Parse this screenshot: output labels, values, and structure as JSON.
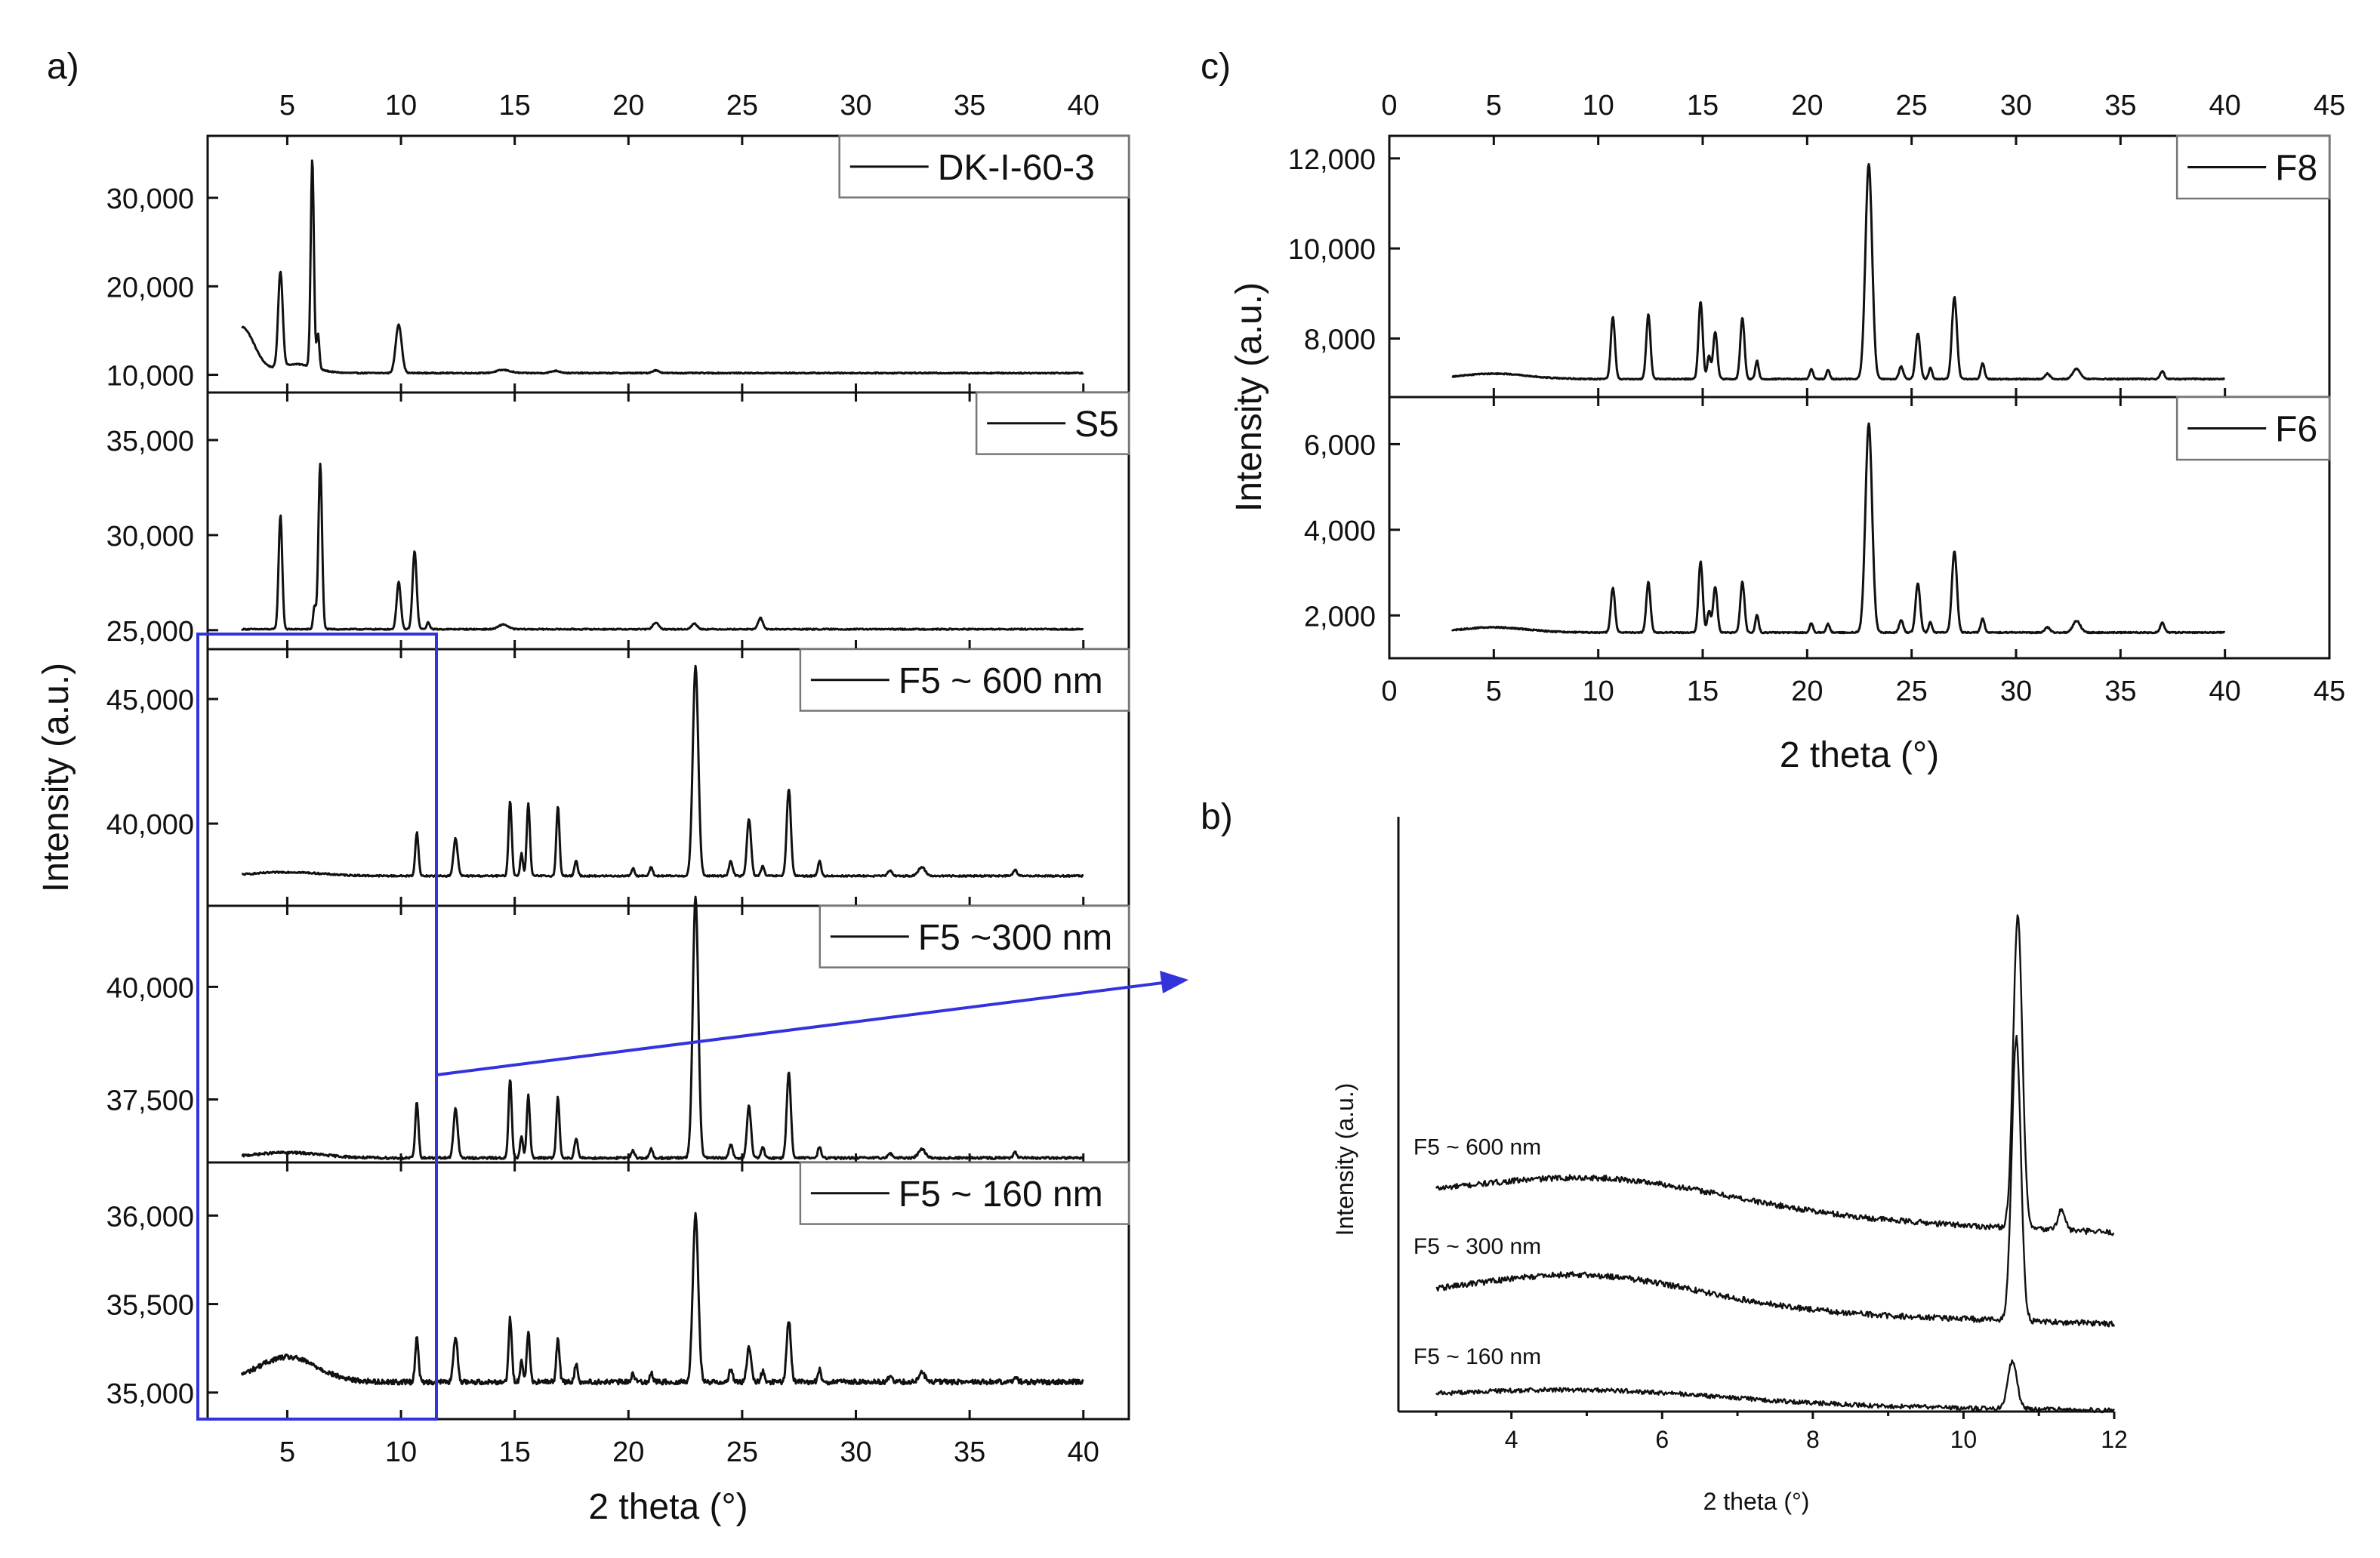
{
  "panels": {
    "a": "a)",
    "b": "b)",
    "c": "c)"
  },
  "chart_data": [
    {
      "id": "a",
      "type": "line",
      "xlabel": "2 theta (°)",
      "ylabel": "Intensity (a.u.)",
      "xlim": [
        1.5,
        42
      ],
      "xticks": [
        5,
        10,
        15,
        20,
        25,
        30,
        35,
        40
      ],
      "baseline_note": "Stacked X-ray powder diffraction patterns",
      "series": [
        {
          "name": "DK-I-60-3",
          "ylim": [
            8000,
            37000
          ],
          "yticks": [
            10000,
            20000,
            30000
          ],
          "ytick_labels": [
            "10,000",
            "20,000",
            "30,000"
          ],
          "start": 3,
          "end": 40,
          "base": 10200,
          "noise": 60,
          "peaks": [
            [
              4.7,
              10800,
              0.1
            ],
            [
              6.1,
              23500,
              0.07
            ],
            [
              6.35,
              4000,
              0.06
            ],
            [
              9.9,
              5500,
              0.13
            ],
            [
              14.5,
              350,
              0.3
            ],
            [
              16.8,
              250,
              0.2
            ],
            [
              21.2,
              300,
              0.15
            ]
          ],
          "humps": [
            [
              3,
              5200,
              0.55
            ],
            [
              5.4,
              1000,
              0.8
            ]
          ]
        },
        {
          "name": "S5",
          "ylim": [
            24000,
            37500
          ],
          "yticks": [
            25000,
            30000,
            35000
          ],
          "ytick_labels": [
            "25,000",
            "30,000",
            "35,000"
          ],
          "start": 3,
          "end": 40,
          "base": 25050,
          "noise": 30,
          "peaks": [
            [
              4.7,
              6000,
              0.08
            ],
            [
              6.2,
              1200,
              0.06
            ],
            [
              6.45,
              8700,
              0.08
            ],
            [
              9.9,
              2500,
              0.09
            ],
            [
              10.6,
              4100,
              0.09
            ],
            [
              11.2,
              350,
              0.07
            ],
            [
              14.5,
              250,
              0.2
            ],
            [
              21.2,
              350,
              0.12
            ],
            [
              22.9,
              300,
              0.12
            ],
            [
              25.8,
              600,
              0.1
            ]
          ],
          "humps": []
        },
        {
          "name": "F5 ~ 600 nm",
          "ylim": [
            36700,
            47000
          ],
          "yticks": [
            40000,
            45000
          ],
          "ytick_labels": [
            "40,000",
            "45,000"
          ],
          "start": 3,
          "end": 40,
          "base": 37900,
          "noise": 30,
          "peaks": [
            [
              10.7,
              1750,
              0.07
            ],
            [
              12.4,
              1500,
              0.09
            ],
            [
              14.8,
              3000,
              0.07
            ],
            [
              15.3,
              900,
              0.06
            ],
            [
              15.6,
              2900,
              0.07
            ],
            [
              16.9,
              2800,
              0.07
            ],
            [
              17.7,
              600,
              0.07
            ],
            [
              20.2,
              300,
              0.07
            ],
            [
              21.0,
              350,
              0.07
            ],
            [
              22.95,
              8400,
              0.12
            ],
            [
              24.5,
              600,
              0.08
            ],
            [
              25.3,
              2300,
              0.09
            ],
            [
              25.9,
              400,
              0.07
            ],
            [
              27.05,
              3500,
              0.09
            ],
            [
              28.4,
              600,
              0.07
            ],
            [
              31.5,
              200,
              0.1
            ],
            [
              32.9,
              350,
              0.15
            ],
            [
              37.0,
              250,
              0.08
            ]
          ],
          "humps": [
            [
              5,
              150,
              1.5
            ]
          ]
        },
        {
          "name": "F5 ~300 nm",
          "ylim": [
            36100,
            41800
          ],
          "yticks": [
            37500,
            40000
          ],
          "ytick_labels": [
            "37,500",
            "40,000"
          ],
          "start": 3,
          "end": 40,
          "base": 36200,
          "noise": 25,
          "peaks": [
            [
              10.7,
              1250,
              0.07
            ],
            [
              12.4,
              1100,
              0.09
            ],
            [
              14.8,
              1750,
              0.07
            ],
            [
              15.3,
              500,
              0.06
            ],
            [
              15.6,
              1400,
              0.07
            ],
            [
              16.9,
              1350,
              0.07
            ],
            [
              17.7,
              450,
              0.07
            ],
            [
              20.2,
              180,
              0.07
            ],
            [
              21.0,
              200,
              0.07
            ],
            [
              22.95,
              5800,
              0.12
            ],
            [
              24.5,
              300,
              0.08
            ],
            [
              25.3,
              1150,
              0.09
            ],
            [
              25.9,
              250,
              0.07
            ],
            [
              27.05,
              1900,
              0.09
            ],
            [
              28.4,
              250,
              0.07
            ],
            [
              31.5,
              100,
              0.1
            ],
            [
              32.9,
              200,
              0.15
            ],
            [
              37.0,
              120,
              0.08
            ]
          ],
          "humps": [
            [
              5,
              120,
              1.5
            ]
          ]
        },
        {
          "name": "F5 ~ 160 nm",
          "ylim": [
            34850,
            36300
          ],
          "yticks": [
            35000,
            35500,
            36000
          ],
          "ytick_labels": [
            "35,000",
            "35,500",
            "36,000"
          ],
          "start": 3,
          "end": 40,
          "base": 35060,
          "noise": 14,
          "peaks": [
            [
              10.7,
              260,
              0.07
            ],
            [
              12.4,
              250,
              0.09
            ],
            [
              14.8,
              360,
              0.07
            ],
            [
              15.3,
              130,
              0.06
            ],
            [
              15.6,
              280,
              0.07
            ],
            [
              16.9,
              250,
              0.07
            ],
            [
              17.7,
              100,
              0.07
            ],
            [
              20.2,
              50,
              0.07
            ],
            [
              21.0,
              50,
              0.07
            ],
            [
              22.95,
              940,
              0.12
            ],
            [
              24.5,
              70,
              0.08
            ],
            [
              25.3,
              200,
              0.09
            ],
            [
              25.9,
              60,
              0.07
            ],
            [
              27.05,
              350,
              0.09
            ],
            [
              28.4,
              70,
              0.07
            ],
            [
              31.5,
              30,
              0.1
            ],
            [
              32.9,
              50,
              0.15
            ],
            [
              37.0,
              30,
              0.08
            ]
          ],
          "humps": [
            [
              5,
              140,
              1.3
            ]
          ]
        }
      ]
    },
    {
      "id": "c",
      "type": "line",
      "xlabel": "2 theta (°)",
      "ylabel": "Intensity (a.u.)",
      "xlim": [
        0,
        45
      ],
      "xticks": [
        0,
        5,
        10,
        15,
        20,
        25,
        30,
        35,
        40,
        45
      ],
      "series": [
        {
          "name": "F8",
          "ylim": [
            6700,
            12500
          ],
          "yticks": [
            8000,
            10000,
            12000
          ],
          "ytick_labels": [
            "8,000",
            "10,000",
            "12,000"
          ],
          "start": 3,
          "end": 40,
          "base": 7100,
          "noise": 12,
          "peaks": [
            [
              10.7,
              1380,
              0.1
            ],
            [
              12.4,
              1430,
              0.1
            ],
            [
              14.9,
              1720,
              0.1
            ],
            [
              15.3,
              500,
              0.08
            ],
            [
              15.6,
              1050,
              0.1
            ],
            [
              16.9,
              1370,
              0.1
            ],
            [
              17.6,
              400,
              0.08
            ],
            [
              20.2,
              230,
              0.08
            ],
            [
              21.0,
              200,
              0.08
            ],
            [
              22.95,
              4780,
              0.16
            ],
            [
              24.5,
              280,
              0.1
            ],
            [
              25.3,
              1020,
              0.11
            ],
            [
              25.9,
              250,
              0.08
            ],
            [
              27.05,
              1820,
              0.12
            ],
            [
              28.4,
              350,
              0.09
            ],
            [
              31.5,
              120,
              0.12
            ],
            [
              32.9,
              230,
              0.18
            ],
            [
              37.0,
              180,
              0.1
            ]
          ],
          "humps": [
            [
              5,
              120,
              1.6
            ]
          ]
        },
        {
          "name": "F6",
          "ylim": [
            1000,
            7100
          ],
          "yticks": [
            2000,
            4000,
            6000
          ],
          "ytick_labels": [
            "2,000",
            "4,000",
            "6,000"
          ],
          "start": 3,
          "end": 40,
          "base": 1600,
          "noise": 14,
          "peaks": [
            [
              10.7,
              1040,
              0.1
            ],
            [
              12.4,
              1180,
              0.1
            ],
            [
              14.9,
              1660,
              0.1
            ],
            [
              15.3,
              500,
              0.08
            ],
            [
              15.6,
              1070,
              0.1
            ],
            [
              16.9,
              1190,
              0.1
            ],
            [
              17.6,
              420,
              0.08
            ],
            [
              20.2,
              220,
              0.08
            ],
            [
              21.0,
              200,
              0.08
            ],
            [
              22.95,
              4880,
              0.16
            ],
            [
              24.5,
              280,
              0.1
            ],
            [
              25.3,
              1140,
              0.11
            ],
            [
              25.9,
              250,
              0.08
            ],
            [
              27.05,
              1900,
              0.12
            ],
            [
              28.4,
              320,
              0.09
            ],
            [
              31.5,
              120,
              0.12
            ],
            [
              32.9,
              270,
              0.18
            ],
            [
              37.0,
              230,
              0.1
            ]
          ],
          "humps": [
            [
              5,
              120,
              1.6
            ]
          ]
        }
      ]
    },
    {
      "id": "b",
      "type": "line",
      "xlabel": "2 theta (°)",
      "ylabel": "Intensity (a.u.)",
      "xlim": [
        2.5,
        12
      ],
      "xticks": [
        4,
        6,
        8,
        10,
        12
      ],
      "ylim": [
        0,
        10.5
      ],
      "series": [
        {
          "name": "F5 ~ 600 nm",
          "start": 3,
          "end": 12,
          "offset": 3.7,
          "slope": -0.06,
          "hump": [
            5.2,
            0.55,
            1.7
          ],
          "peaks": [
            [
              10.72,
              5.5,
              0.06
            ],
            [
              11.3,
              0.35,
              0.05
            ]
          ],
          "noise": 0.05
        },
        {
          "name": "F5 ~ 300 nm",
          "start": 3,
          "end": 12,
          "offset": 1.95,
          "slope": -0.045,
          "hump": [
            5.0,
            0.55,
            1.5
          ],
          "peaks": [
            [
              10.7,
              5.0,
              0.06
            ]
          ],
          "noise": 0.05
        },
        {
          "name": "F5 ~ 160 nm",
          "start": 3,
          "end": 12,
          "offset": 0.2,
          "slope": -0.02,
          "hump": [
            5.0,
            0.22,
            1.8
          ],
          "peaks": [
            [
              10.65,
              0.85,
              0.06
            ]
          ],
          "noise": 0.04
        }
      ]
    }
  ]
}
